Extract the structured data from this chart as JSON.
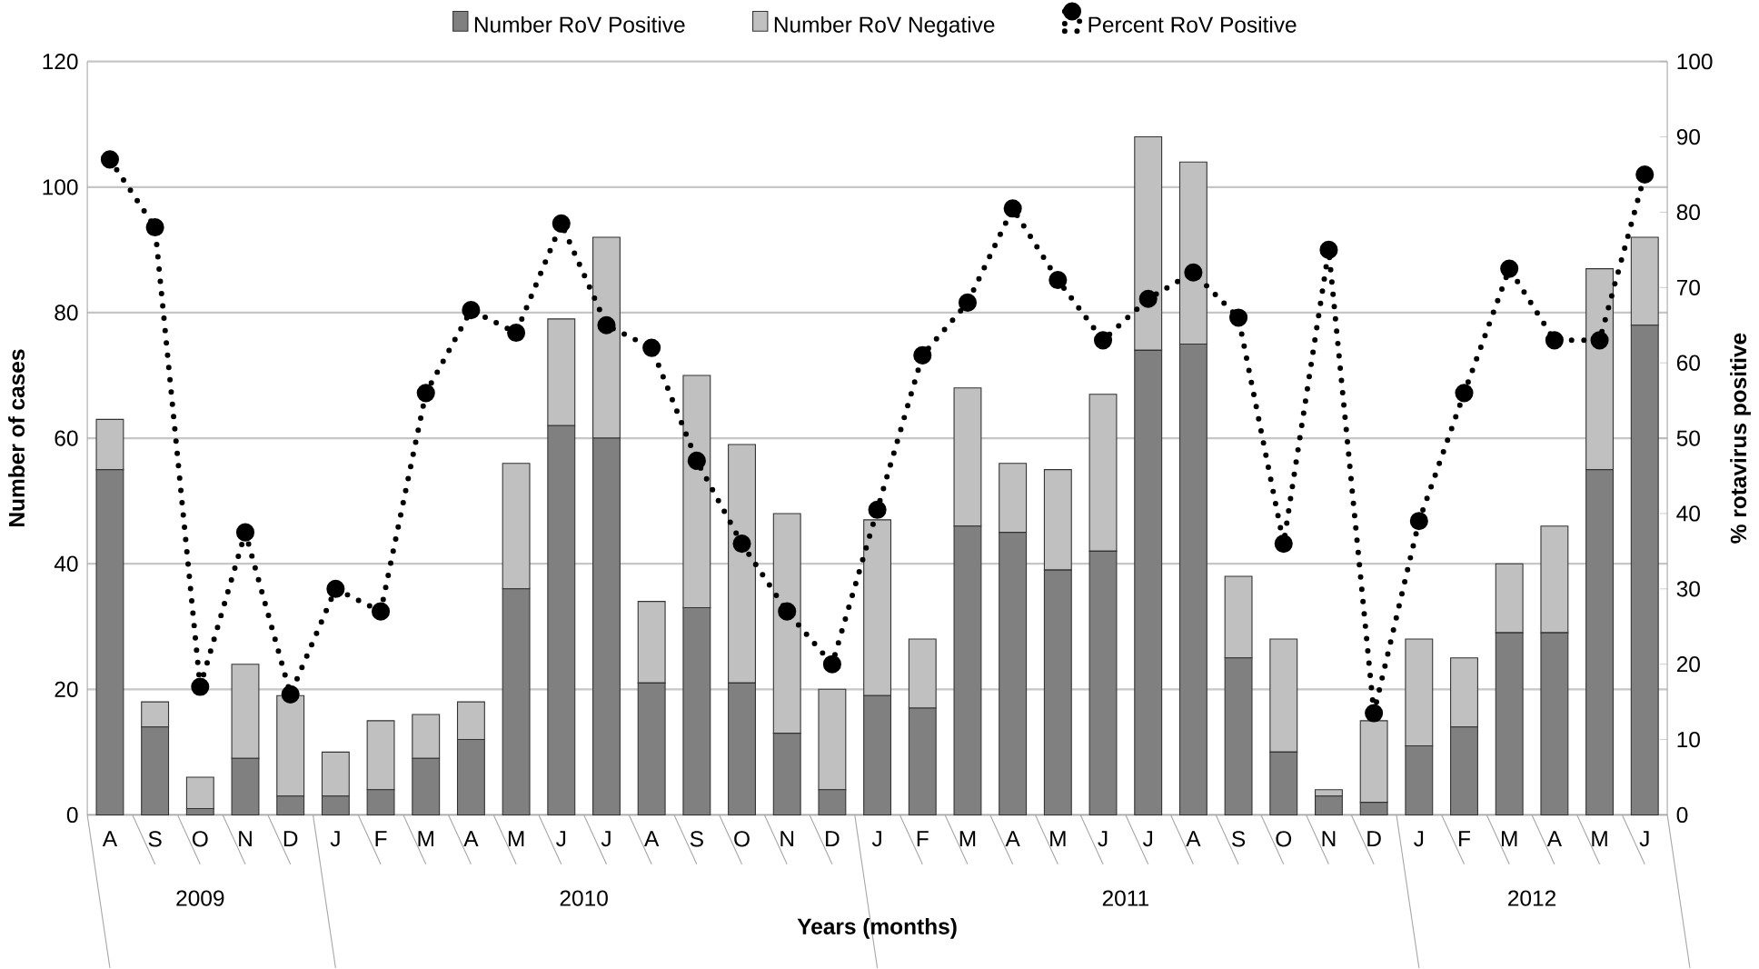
{
  "chart_data": {
    "type": "bar",
    "stacked": true,
    "xlabel": "Years (months)",
    "ylabel": "Number of cases",
    "y2label": "% rotavirus positive",
    "categories": [
      "A",
      "S",
      "O",
      "N",
      "D",
      "J",
      "F",
      "M",
      "A",
      "M",
      "J",
      "J",
      "A",
      "S",
      "O",
      "N",
      "D",
      "J",
      "F",
      "M",
      "A",
      "M",
      "J",
      "J",
      "A",
      "S",
      "O",
      "N",
      "D",
      "J",
      "F",
      "M",
      "A",
      "M",
      "J"
    ],
    "series": [
      {
        "name": "Number RoV Positive",
        "color": "#808080",
        "values": [
          55,
          14,
          1,
          9,
          3,
          3,
          4,
          9,
          12,
          36,
          62,
          60,
          21,
          33,
          21,
          13,
          4,
          19,
          17,
          46,
          45,
          39,
          42,
          74,
          75,
          25,
          10,
          3,
          2,
          11,
          14,
          29,
          29,
          55,
          78
        ]
      },
      {
        "name": "Number RoV Negative",
        "color": "#c0c0c0",
        "values": [
          8,
          4,
          5,
          15,
          16,
          7,
          11,
          7,
          6,
          20,
          17,
          32,
          13,
          37,
          38,
          35,
          16,
          28,
          11,
          22,
          11,
          16,
          25,
          34,
          29,
          13,
          18,
          1,
          13,
          17,
          11,
          11,
          17,
          32,
          14
        ]
      },
      {
        "name": "Percent RoV Positive",
        "type": "line",
        "axis": "y2",
        "color": "#000000",
        "marker": "circle",
        "line_style": "dotted",
        "values": [
          87,
          78,
          17,
          37.5,
          16,
          30,
          27,
          56,
          67,
          64,
          78.5,
          65,
          62,
          47,
          36,
          27,
          20,
          40.5,
          61,
          68,
          80.5,
          71,
          63,
          68.5,
          72,
          66,
          36,
          75,
          13.5,
          39,
          56,
          72.5,
          63,
          63,
          85
        ]
      }
    ],
    "ylim": [
      0,
      120
    ],
    "yticks": [
      0,
      20,
      40,
      60,
      80,
      100,
      120
    ],
    "y2lim": [
      0,
      100
    ],
    "y2ticks": [
      0,
      10,
      20,
      30,
      40,
      50,
      60,
      70,
      80,
      90,
      100
    ],
    "grid": "y",
    "legend": "top",
    "annotations": [
      "2009",
      "2010",
      "2011",
      "2012"
    ]
  }
}
